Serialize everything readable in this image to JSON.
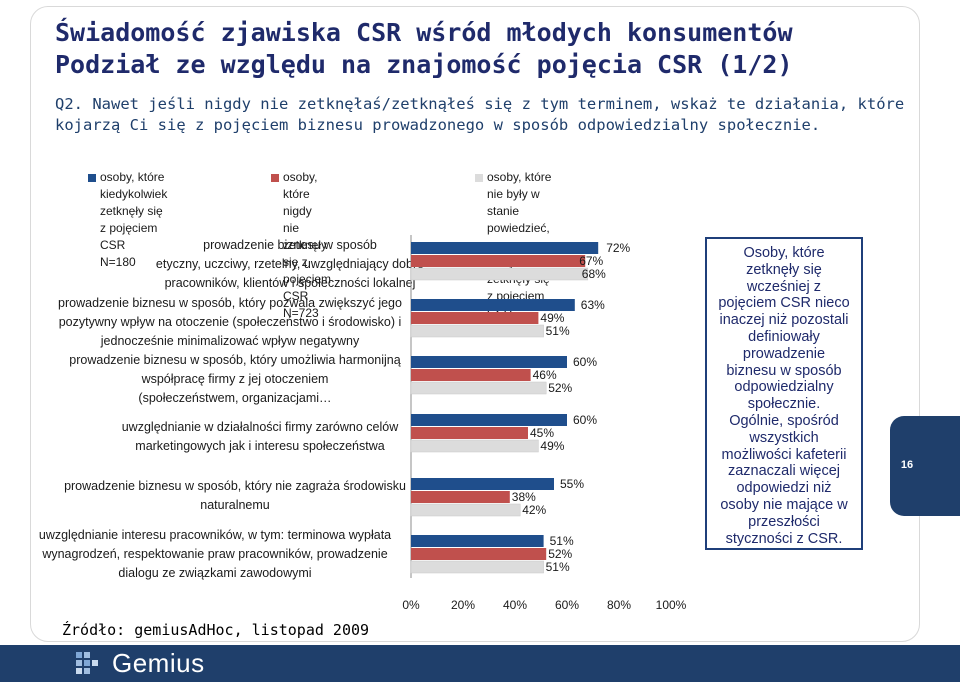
{
  "slide": {
    "title": "Świadomość zjawiska CSR wśród młodych konsumentów\nPodział ze względu na znajomość pojęcia CSR (1/2)",
    "question": "Q2. Nawet jeśli nigdy nie zetknęłaś/zetknąłeś się z tym terminem, wskaż te działania, które\nkojarzą Ci się z pojęciem biznesu prowadzonego w sposób odpowiedzialny społecznie.",
    "side_note": "Osoby, które\nzetknęły się\nwcześniej z\npojęciem CSR nieco\ninaczej niż pozostali\ndefiniowały\nprowadzenie\nbiznesu w sposób\nodpowiedzialny\nspołecznie.\nOgólnie, spośród\nwszystkich\nmożliwości kafeterii\nzaznaczali więcej\nodpowiedzi niż\nosoby nie mające w\nprzeszłości\nstyczności z CSR.",
    "source": "Źródło: gemiusAdHoc, listopad 2009",
    "page_number": "16",
    "logo_text": "Gemius"
  },
  "chart_data": {
    "type": "bar",
    "orientation": "horizontal",
    "xlim": [
      0,
      100
    ],
    "xticks": [
      "0%",
      "20%",
      "40%",
      "60%",
      "80%",
      "100%"
    ],
    "categories": [
      "prowadzenie biznesu w sposób\netyczny, uczciwy, rzetelny,  uwzględniający dobro\npracowników,  klientów i społeczności lokalnej",
      "prowadzenie biznesu w  sposób, który pozwala zwiększyć jego\npozytywny wpływ na otoczenie (społeczeństwo i środowisko) i\njednocześnie  minimalizować wpływ negatywny",
      "prowadzenie  biznesu w sposób, który umożliwia harmonijną\nwspółpracę firmy z jej otoczeniem\n(społeczeństwem, organizacjami…",
      "uwzględnianie w działalności  firmy zarówno celów\nmarketingowych  jak i interesu społeczeństwa",
      "prowadzenie  biznesu w sposób, który nie zagraża  środowisku\nnaturalnemu",
      "uwzględnianie  interesu pracowników, w tym:  terminowa wypłata\nwynagrodzeń, respektowanie praw pracowników, prowadzenie\ndialogu ze związkami zawodowymi"
    ],
    "series": [
      {
        "name": "osoby, które kiedykolwiek\nzetknęły się z pojęciem CSR\nN=180",
        "color": "#1f4e8c",
        "values": [
          72,
          63,
          60,
          60,
          55,
          51
        ],
        "labels": [
          "72%",
          "63%",
          "60%",
          "60%",
          "55%",
          "51%"
        ]
      },
      {
        "name": "osoby, które nigdy\nnie zetknęły się z pojęciem CSR\nN=723",
        "color": "#c0504d",
        "values": [
          67,
          49,
          46,
          45,
          38,
          52
        ],
        "labels": [
          "67%",
          "49%",
          "46%",
          "45%",
          "38%",
          "52%"
        ]
      },
      {
        "name": "osoby, które nie były w stanie powiedzieć,\nczy kiedykolwiek zetknęły się z pojęciem CSR\nN=232",
        "color": "#dcdcdc",
        "values": [
          68,
          51,
          52,
          49,
          42,
          51
        ],
        "labels": [
          "68%",
          "51%",
          "52%",
          "49%",
          "42%",
          "51%"
        ]
      }
    ]
  }
}
